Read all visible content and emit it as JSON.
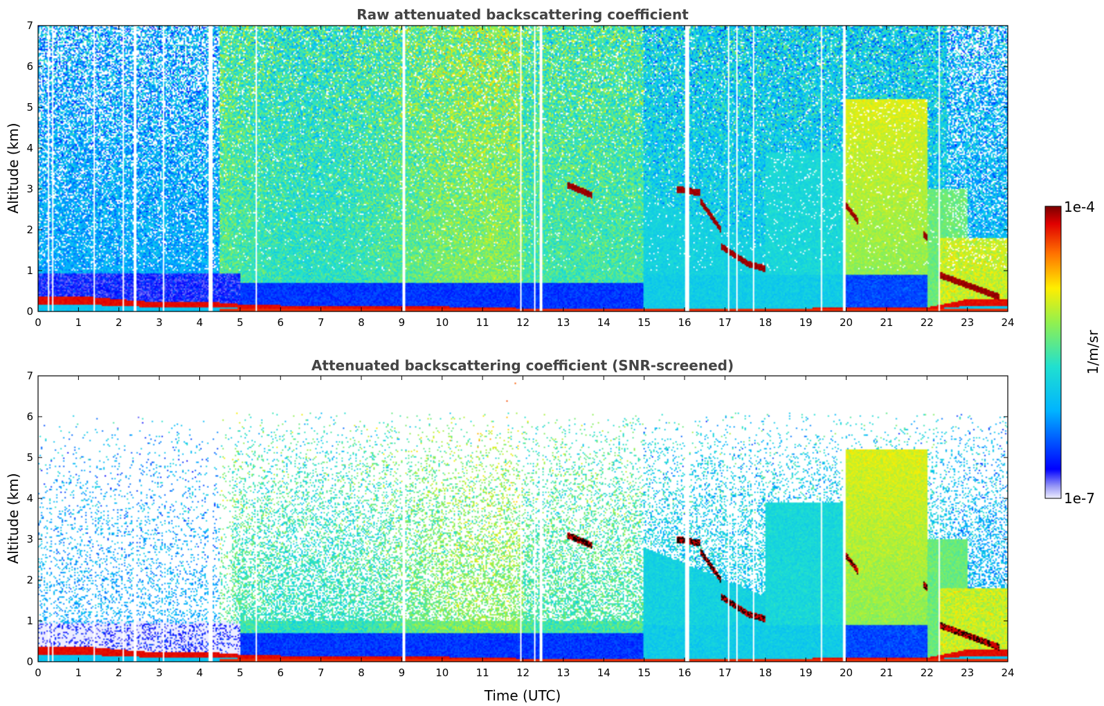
{
  "chart_data": [
    {
      "type": "heatmap",
      "title": "Raw attenuated backscattering coefficient",
      "xlabel": "",
      "ylabel": "Altitude (km)",
      "xlim": [
        0,
        24
      ],
      "ylim": [
        0,
        7
      ],
      "xticks": [
        "0",
        "1",
        "2",
        "3",
        "4",
        "5",
        "6",
        "7",
        "8",
        "9",
        "10",
        "11",
        "12",
        "13",
        "14",
        "15",
        "16",
        "17",
        "18",
        "19",
        "20",
        "21",
        "22",
        "23",
        "24"
      ],
      "yticks": [
        "0",
        "1",
        "2",
        "3",
        "4",
        "5",
        "6",
        "7"
      ],
      "features": {
        "boundary_layer_top_km": [
          0.38,
          0.38,
          0.3,
          0.22,
          0.25,
          0.18,
          0.15,
          0.15,
          0.15,
          0.15,
          0.12,
          0.1,
          0.08,
          0.08,
          0.08,
          0.08,
          0.08,
          0.08,
          0.08,
          0.08,
          0.1,
          0.1,
          0.1,
          0.3,
          0.3
        ],
        "cloud_segments": [
          {
            "t0": 13.1,
            "t1": 13.7,
            "z0": 3.1,
            "z1": 2.85
          },
          {
            "t0": 15.8,
            "t1": 16.4,
            "z0": 3.0,
            "z1": 2.9
          },
          {
            "t0": 16.4,
            "t1": 16.9,
            "z0": 2.7,
            "z1": 2.0
          },
          {
            "t0": 16.9,
            "t1": 17.6,
            "z0": 1.6,
            "z1": 1.15
          },
          {
            "t0": 17.6,
            "t1": 18.0,
            "z0": 1.15,
            "z1": 1.05
          },
          {
            "t0": 20.0,
            "t1": 20.3,
            "z0": 2.6,
            "z1": 2.2
          },
          {
            "t0": 21.9,
            "t1": 22.0,
            "z0": 1.9,
            "z1": 1.8
          },
          {
            "t0": 22.3,
            "t1": 23.8,
            "z0": 0.9,
            "z1": 0.35
          }
        ]
      }
    },
    {
      "type": "heatmap",
      "title": "Attenuated backscattering coefficient (SNR-screened)",
      "xlabel": "Time (UTC)",
      "ylabel": "Altitude (km)",
      "xlim": [
        0,
        24
      ],
      "ylim": [
        0,
        7
      ],
      "xticks": [
        "0",
        "1",
        "2",
        "3",
        "4",
        "5",
        "6",
        "7",
        "8",
        "9",
        "10",
        "11",
        "12",
        "13",
        "14",
        "15",
        "16",
        "17",
        "18",
        "19",
        "20",
        "21",
        "22",
        "23",
        "24"
      ],
      "yticks": [
        "0",
        "1",
        "2",
        "3",
        "4",
        "5",
        "6",
        "7"
      ]
    }
  ],
  "colorbar": {
    "max_label": "1e-4",
    "min_label": "1e-7",
    "unit": "1/m/sr",
    "colormap": "jet",
    "scale": "log"
  }
}
